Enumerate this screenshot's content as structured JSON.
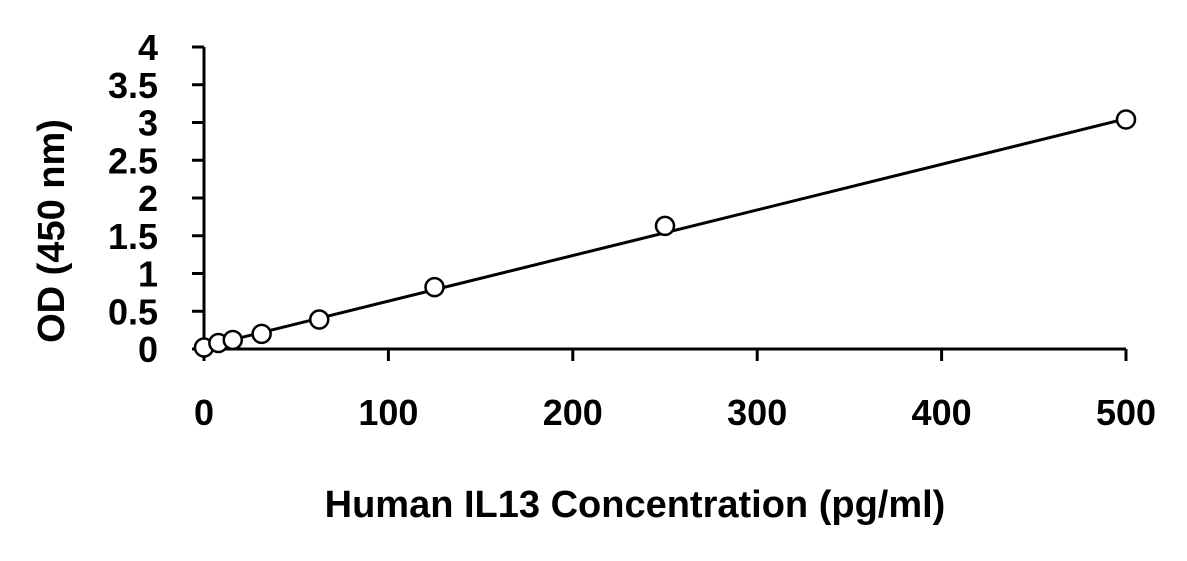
{
  "chart_data": {
    "type": "scatter",
    "title": "",
    "xlabel": "Human IL13 Concentration (pg/ml)",
    "ylabel": "OD (450 nm)",
    "xlim": [
      0,
      500
    ],
    "ylim": [
      0,
      4
    ],
    "x_ticks": [
      0,
      100,
      200,
      300,
      400,
      500
    ],
    "y_ticks": [
      0,
      0.5,
      1,
      1.5,
      2,
      2.5,
      3,
      3.5,
      4
    ],
    "x_tick_labels": [
      "0",
      "100",
      "200",
      "300",
      "400",
      "500"
    ],
    "y_tick_labels": [
      "0",
      "0.5",
      "1",
      "1.5",
      "2",
      "2.5",
      "3",
      "3.5",
      "4"
    ],
    "grid": false,
    "legend": "none",
    "series": [
      {
        "marker": "open-circle",
        "points": [
          {
            "x": 0,
            "y": 0.02
          },
          {
            "x": 7.8,
            "y": 0.08
          },
          {
            "x": 15.6,
            "y": 0.12
          },
          {
            "x": 31.25,
            "y": 0.2
          },
          {
            "x": 62.5,
            "y": 0.39
          },
          {
            "x": 125,
            "y": 0.82
          },
          {
            "x": 250,
            "y": 1.63
          },
          {
            "x": 500,
            "y": 3.04
          }
        ]
      }
    ],
    "trendline": {
      "type": "linear",
      "from": {
        "x": 0,
        "y": 0.03
      },
      "to": {
        "x": 500,
        "y": 3.05
      }
    },
    "colors": {
      "axis": "#000000",
      "marker_fill": "#ffffff",
      "marker_stroke": "#000000",
      "line": "#000000"
    }
  }
}
